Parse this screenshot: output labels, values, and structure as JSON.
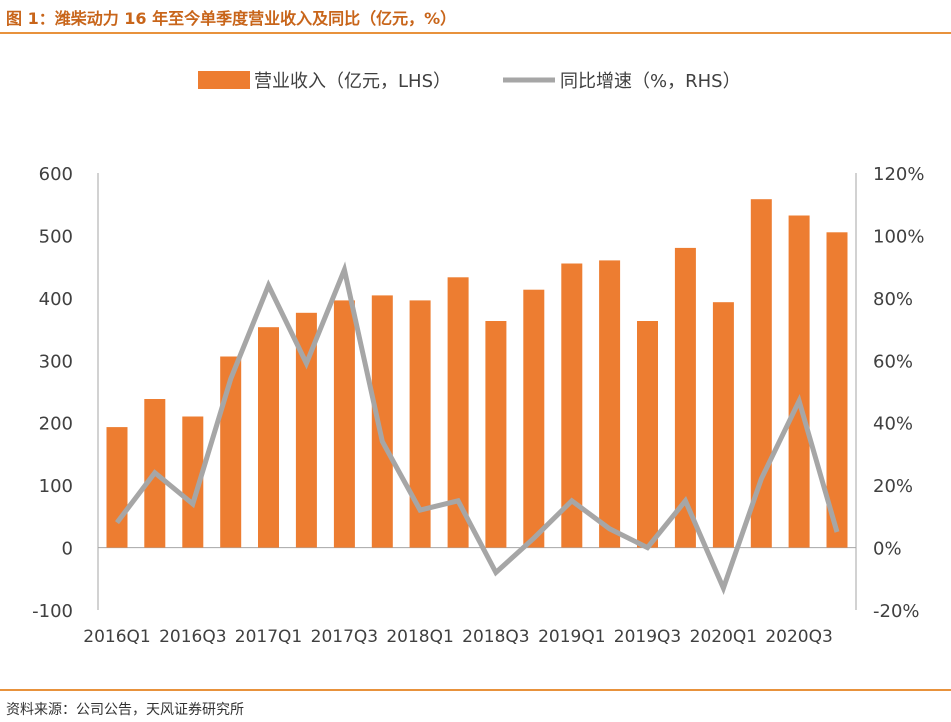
{
  "figure": {
    "title": "图 1：潍柴动力 16 年至今单季度营业收入及同比（亿元，%）",
    "source": "资料来源：公司公告，天风证券研究所"
  },
  "colors": {
    "bar": "#ed7d31",
    "line": "#a6a6a6",
    "axis": "#a6a6a6",
    "title": "#c8651a",
    "rule": "#e8923c"
  },
  "chart_data": {
    "type": "bar",
    "categories": [
      "2016Q1",
      "2016Q2",
      "2016Q3",
      "2016Q4",
      "2017Q1",
      "2017Q2",
      "2017Q3",
      "2017Q4",
      "2018Q1",
      "2018Q2",
      "2018Q3",
      "2018Q4",
      "2019Q1",
      "2019Q2",
      "2019Q3",
      "2019Q4",
      "2020Q1",
      "2020Q2",
      "2020Q3",
      "2020Q4"
    ],
    "x_tick_labels": [
      "2016Q1",
      "2016Q3",
      "2017Q1",
      "2017Q3",
      "2018Q1",
      "2018Q3",
      "2019Q1",
      "2019Q3",
      "2020Q1",
      "2020Q3"
    ],
    "series": [
      {
        "name": "营业收入（亿元，LHS）",
        "type": "bar",
        "axis": "left",
        "values": [
          193,
          238,
          210,
          306,
          353,
          376,
          396,
          404,
          396,
          433,
          363,
          413,
          455,
          460,
          363,
          480,
          393,
          558,
          532,
          505
        ]
      },
      {
        "name": "同比增速（%，RHS）",
        "type": "line",
        "axis": "right",
        "values": [
          8,
          24,
          14,
          54,
          84,
          59,
          89,
          34,
          12,
          15,
          -8,
          3,
          15,
          6,
          0,
          15,
          -13,
          22,
          47,
          5
        ]
      }
    ],
    "y_left": {
      "min": -100,
      "max": 600,
      "ticks": [
        600,
        500,
        400,
        300,
        200,
        100,
        0,
        -100
      ]
    },
    "y_right": {
      "min": -20,
      "max": 120,
      "ticks": [
        "120%",
        "100%",
        "80%",
        "60%",
        "40%",
        "20%",
        "0%",
        "-20%"
      ]
    },
    "legend": {
      "placement": "top-center"
    },
    "grid": false
  }
}
